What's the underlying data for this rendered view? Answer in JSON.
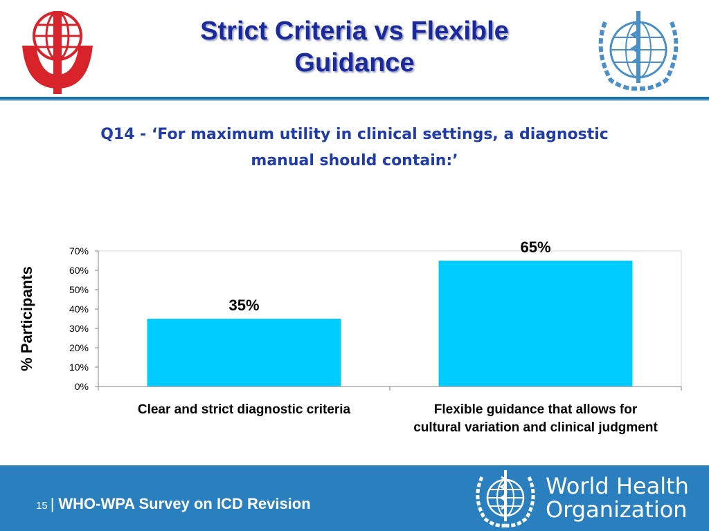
{
  "slide": {
    "title": "Strict Criteria vs Flexible Guidance",
    "question_line1": "Q14 - ‘For maximum utility in clinical settings, a diagnostic",
    "question_line2": "manual should contain:’",
    "footer_page": "15",
    "footer_separator": "|",
    "footer_text": "WHO-WPA Survey on ICD Revision",
    "footer_org_line1": "World Health",
    "footer_org_line2": "Organization"
  },
  "icons": {
    "left_logo": "wpa-globe-logo-icon",
    "right_logo": "who-emblem-icon",
    "footer_logo": "who-emblem-icon"
  },
  "colors": {
    "title": "#1a2a9c",
    "question": "#1f3ca8",
    "bar": "#00ccff",
    "footer": "#2a80be",
    "wpa_red": "#d8232a",
    "who_blue": "#4a8fc8"
  },
  "chart_data": {
    "type": "bar",
    "ylabel": "%  Participants",
    "categories": [
      [
        "Clear and strict diagnostic criteria"
      ],
      [
        "Flexible guidance that allows for",
        "cultural variation and clinical judgment"
      ]
    ],
    "values": [
      35,
      65
    ],
    "data_labels": [
      "35%",
      "65%"
    ],
    "ylim": [
      0,
      70
    ],
    "yticks": [
      0,
      10,
      20,
      30,
      40,
      50,
      60,
      70
    ],
    "ytick_labels": [
      "0%",
      "10%",
      "20%",
      "30%",
      "40%",
      "50%",
      "60%",
      "70%"
    ],
    "grid": false,
    "legend": "none"
  }
}
